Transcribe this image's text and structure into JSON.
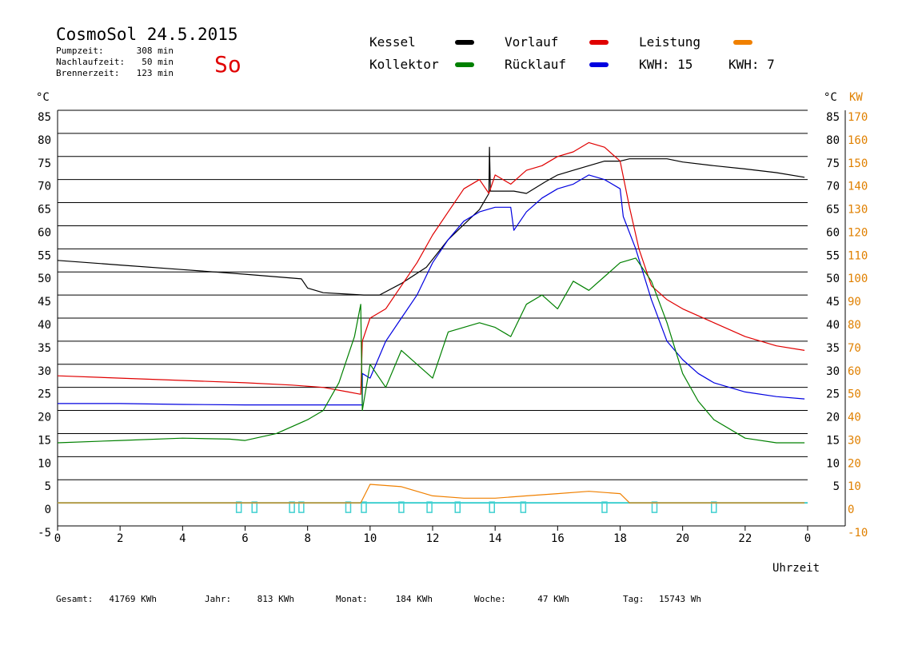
{
  "header": {
    "title": "CosmoSol 24.5.2015",
    "day": "So",
    "info": [
      {
        "label": "Pumpzeit:",
        "value": "308 min"
      },
      {
        "label": "Nachlaufzeit:",
        "value": "50 min"
      },
      {
        "label": "Brennerzeit:",
        "value": "123 min"
      }
    ]
  },
  "legend": [
    {
      "name": "Kessel",
      "color": "#000000"
    },
    {
      "name": "Vorlauf",
      "color": "#e00000"
    },
    {
      "name": "Leistung",
      "color": "#f08000"
    },
    {
      "name": "Kollektor",
      "color": "#008000"
    },
    {
      "name": "Rücklauf",
      "color": "#0000e0"
    }
  ],
  "kwh": [
    {
      "label": "KWH:",
      "value": "15",
      "color": "#e08000"
    },
    {
      "label": "KWH:",
      "value": "7",
      "color": "#800080"
    }
  ],
  "axes": {
    "left_unit": "°C",
    "right_unit_c": "°C",
    "right_unit_kw": "KW",
    "xlabel": "Uhrzeit",
    "temp_ticks": [
      -5,
      0,
      5,
      10,
      15,
      20,
      25,
      30,
      35,
      40,
      45,
      50,
      55,
      60,
      65,
      70,
      75,
      80,
      85
    ],
    "kw_ticks": [
      -10,
      0,
      10,
      20,
      30,
      40,
      50,
      60,
      70,
      80,
      90,
      100,
      110,
      120,
      130,
      140,
      150,
      160,
      170
    ],
    "right_c_ticks": [
      5,
      10,
      15,
      20,
      25,
      30,
      35,
      40,
      45,
      50,
      55,
      60,
      65,
      70,
      75,
      80,
      85
    ],
    "x_tick_labels": [
      "0",
      "2",
      "4",
      "6",
      "8",
      "10",
      "12",
      "14",
      "16",
      "18",
      "20",
      "22",
      "0"
    ],
    "kw_color": "#e08000",
    "pump_color": "#40d0d0"
  },
  "footer": [
    {
      "label": "Gesamt:",
      "value": "41769 KWh"
    },
    {
      "label": "Jahr:",
      "value": "813 KWh"
    },
    {
      "label": "Monat:",
      "value": "184 KWh"
    },
    {
      "label": "Woche:",
      "value": "47 KWh"
    },
    {
      "label": "Tag:",
      "value": "15743 Wh"
    }
  ],
  "chart_data": {
    "type": "line",
    "xlabel": "Uhrzeit",
    "ylabel": "°C",
    "xlim": [
      0,
      24
    ],
    "ylim": [
      -5,
      85
    ],
    "y2label": "KW",
    "y2lim": [
      -10,
      170
    ],
    "grid": true,
    "legend": "top",
    "series": [
      {
        "name": "Kessel",
        "color": "#000000",
        "points": [
          [
            0,
            52.5
          ],
          [
            2,
            51.5
          ],
          [
            4,
            50.5
          ],
          [
            6,
            49.5
          ],
          [
            7.8,
            48.5
          ],
          [
            8.0,
            46.5
          ],
          [
            8.5,
            45.5
          ],
          [
            9.8,
            45
          ],
          [
            10.3,
            45
          ],
          [
            11,
            47.5
          ],
          [
            11.8,
            51
          ],
          [
            12.5,
            57
          ],
          [
            13.5,
            63.5
          ],
          [
            13.8,
            67
          ],
          [
            13.82,
            77
          ],
          [
            13.85,
            67.5
          ],
          [
            14.6,
            67.5
          ],
          [
            15.0,
            67
          ],
          [
            15.6,
            69.5
          ],
          [
            16.0,
            71
          ],
          [
            16.5,
            72
          ],
          [
            17.0,
            73
          ],
          [
            17.5,
            74
          ],
          [
            18.0,
            74
          ],
          [
            18.3,
            74.5
          ],
          [
            19.0,
            74.5
          ],
          [
            19.5,
            74.5
          ],
          [
            20.0,
            73.8
          ],
          [
            21.0,
            73
          ],
          [
            22.0,
            72.3
          ],
          [
            23.0,
            71.5
          ],
          [
            23.9,
            70.5
          ]
        ]
      },
      {
        "name": "Vorlauf",
        "color": "#e00000",
        "points": [
          [
            0,
            27.5
          ],
          [
            2,
            27
          ],
          [
            4,
            26.5
          ],
          [
            6,
            26
          ],
          [
            7.5,
            25.5
          ],
          [
            8.5,
            25
          ],
          [
            9.3,
            24
          ],
          [
            9.7,
            23.5
          ],
          [
            9.75,
            35
          ],
          [
            10.0,
            40
          ],
          [
            10.5,
            42
          ],
          [
            11.0,
            47
          ],
          [
            11.5,
            52
          ],
          [
            12.0,
            58
          ],
          [
            12.5,
            63
          ],
          [
            13.0,
            68
          ],
          [
            13.5,
            70
          ],
          [
            13.8,
            67
          ],
          [
            14.0,
            71
          ],
          [
            14.5,
            69
          ],
          [
            15.0,
            72
          ],
          [
            15.5,
            73
          ],
          [
            16.0,
            75
          ],
          [
            16.5,
            76
          ],
          [
            17.0,
            78
          ],
          [
            17.5,
            77
          ],
          [
            18.0,
            74
          ],
          [
            18.3,
            64
          ],
          [
            18.6,
            55
          ],
          [
            19.0,
            47
          ],
          [
            19.5,
            44
          ],
          [
            20.0,
            42
          ],
          [
            21.0,
            39
          ],
          [
            22.0,
            36
          ],
          [
            23.0,
            34
          ],
          [
            23.9,
            33
          ]
        ]
      },
      {
        "name": "Rücklauf",
        "color": "#0000e0",
        "points": [
          [
            0,
            21.5
          ],
          [
            2,
            21.5
          ],
          [
            4,
            21.3
          ],
          [
            6,
            21.2
          ],
          [
            8,
            21.2
          ],
          [
            9.75,
            21.2
          ],
          [
            9.75,
            28
          ],
          [
            10.0,
            27
          ],
          [
            10.5,
            35
          ],
          [
            11.0,
            40
          ],
          [
            11.5,
            45
          ],
          [
            12.0,
            52
          ],
          [
            12.5,
            57
          ],
          [
            13.0,
            61
          ],
          [
            13.5,
            63
          ],
          [
            14.0,
            64
          ],
          [
            14.5,
            64
          ],
          [
            14.6,
            59
          ],
          [
            15.0,
            63
          ],
          [
            15.5,
            66
          ],
          [
            16.0,
            68
          ],
          [
            16.5,
            69
          ],
          [
            17.0,
            71
          ],
          [
            17.5,
            70
          ],
          [
            18.0,
            68
          ],
          [
            18.1,
            62
          ],
          [
            18.5,
            55
          ],
          [
            19.0,
            44
          ],
          [
            19.5,
            35
          ],
          [
            20.0,
            31
          ],
          [
            20.5,
            28
          ],
          [
            21.0,
            26
          ],
          [
            22.0,
            24
          ],
          [
            23.0,
            23
          ],
          [
            23.9,
            22.5
          ]
        ]
      },
      {
        "name": "Kollektor",
        "color": "#008000",
        "points": [
          [
            0,
            13
          ],
          [
            2,
            13.5
          ],
          [
            4,
            14
          ],
          [
            5.5,
            13.8
          ],
          [
            6,
            13.5
          ],
          [
            7,
            15
          ],
          [
            8,
            18
          ],
          [
            8.5,
            20
          ],
          [
            9.0,
            26
          ],
          [
            9.5,
            36
          ],
          [
            9.7,
            43
          ],
          [
            9.75,
            20
          ],
          [
            10.0,
            30
          ],
          [
            10.5,
            25
          ],
          [
            11.0,
            33
          ],
          [
            11.5,
            30
          ],
          [
            12.0,
            27
          ],
          [
            12.5,
            37
          ],
          [
            13.0,
            38
          ],
          [
            13.5,
            39
          ],
          [
            14.0,
            38
          ],
          [
            14.5,
            36
          ],
          [
            15.0,
            43
          ],
          [
            15.5,
            45
          ],
          [
            16.0,
            42
          ],
          [
            16.5,
            48
          ],
          [
            17.0,
            46
          ],
          [
            17.5,
            49
          ],
          [
            18.0,
            52
          ],
          [
            18.5,
            53
          ],
          [
            19.0,
            48
          ],
          [
            19.5,
            39
          ],
          [
            20.0,
            28
          ],
          [
            20.5,
            22
          ],
          [
            21.0,
            18
          ],
          [
            22.0,
            14
          ],
          [
            23.0,
            13
          ],
          [
            23.9,
            13
          ]
        ]
      },
      {
        "name": "Leistung",
        "color": "#f08000",
        "axis": "KW",
        "points": [
          [
            0,
            0
          ],
          [
            9.7,
            0
          ],
          [
            10.0,
            8
          ],
          [
            11.0,
            7
          ],
          [
            12.0,
            3
          ],
          [
            13.0,
            2
          ],
          [
            14.0,
            2
          ],
          [
            15.0,
            3
          ],
          [
            16.0,
            4
          ],
          [
            17.0,
            5
          ],
          [
            18.0,
            4
          ],
          [
            18.3,
            0
          ],
          [
            23.9,
            0
          ]
        ]
      }
    ]
  }
}
